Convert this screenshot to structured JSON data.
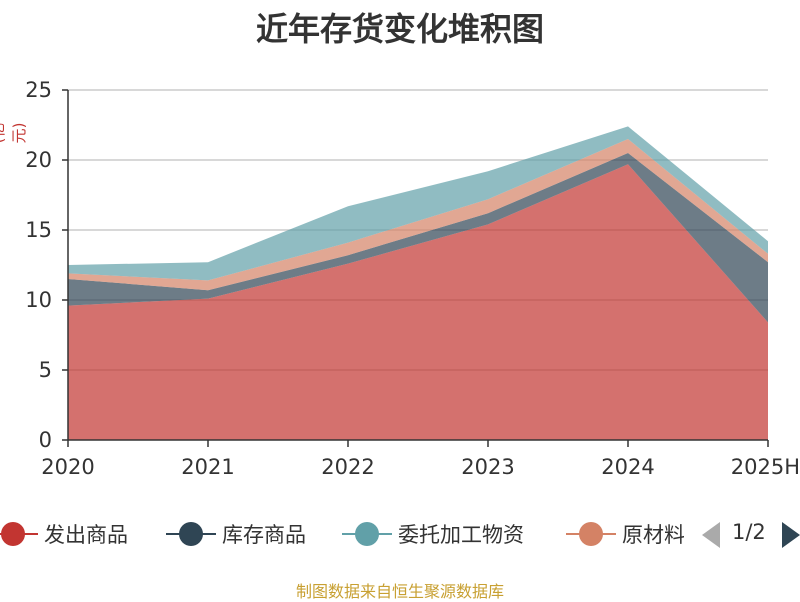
{
  "chart_data": {
    "type": "area",
    "stacked": true,
    "title": "近年存货变化堆积图",
    "ylabel": "(亿元)",
    "xlabel": "",
    "categories": [
      "2020",
      "2021",
      "2022",
      "2023",
      "2024",
      "2025H"
    ],
    "ylim": [
      0,
      25
    ],
    "yticks": [
      0,
      5,
      10,
      15,
      20,
      25
    ],
    "grid": true,
    "series": [
      {
        "name": "发出商品",
        "color": "#c23531",
        "values": [
          9.6,
          10.1,
          12.6,
          15.4,
          19.7,
          8.4
        ]
      },
      {
        "name": "库存商品",
        "color": "#2f4554",
        "values": [
          1.9,
          0.6,
          0.6,
          0.8,
          0.8,
          4.3
        ]
      },
      {
        "name": "原材料",
        "color": "#d48265",
        "values": [
          0.4,
          0.7,
          0.9,
          1.0,
          1.0,
          0.6
        ]
      },
      {
        "name": "委托加工物资",
        "color": "#61a0a8",
        "values": [
          0.6,
          1.3,
          2.6,
          2.0,
          0.9,
          0.9
        ]
      }
    ]
  },
  "legend": {
    "items": [
      {
        "label": "发出商品",
        "color": "#c23531"
      },
      {
        "label": "库存商品",
        "color": "#2f4554"
      },
      {
        "label": "委托加工物资",
        "color": "#61a0a8"
      },
      {
        "label": "原材料",
        "color": "#d48265"
      }
    ],
    "page_indicator": "1/2",
    "legend_position": "bottom"
  },
  "source_note": "制图数据来自恒生聚源数据库"
}
